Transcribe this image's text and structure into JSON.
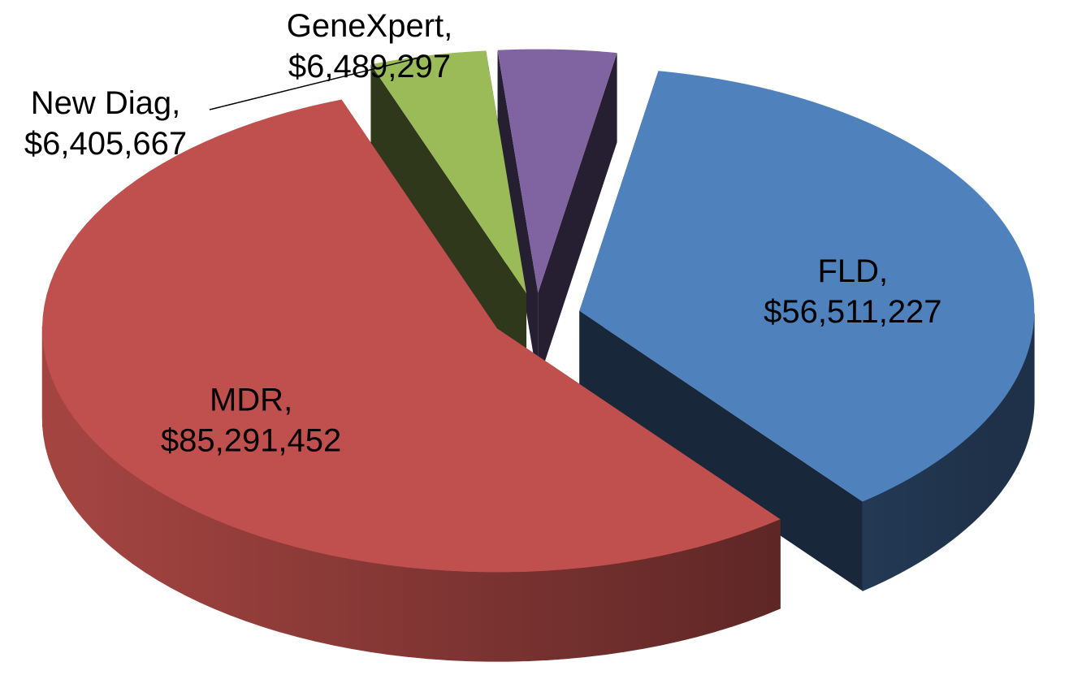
{
  "chart_data": {
    "type": "pie3d",
    "categories": [
      "FLD,",
      "MDR,",
      "New Diag,",
      "GeneXpert,"
    ],
    "values": [
      56511227,
      85291452,
      6405667,
      6489297
    ],
    "value_labels": [
      "$56,511,227",
      "$85,291,452",
      "$6,405,667",
      "$6,489,297"
    ],
    "colors": [
      "#4f81bd",
      "#c0504d",
      "#9bbb59",
      "#8064a2"
    ]
  }
}
